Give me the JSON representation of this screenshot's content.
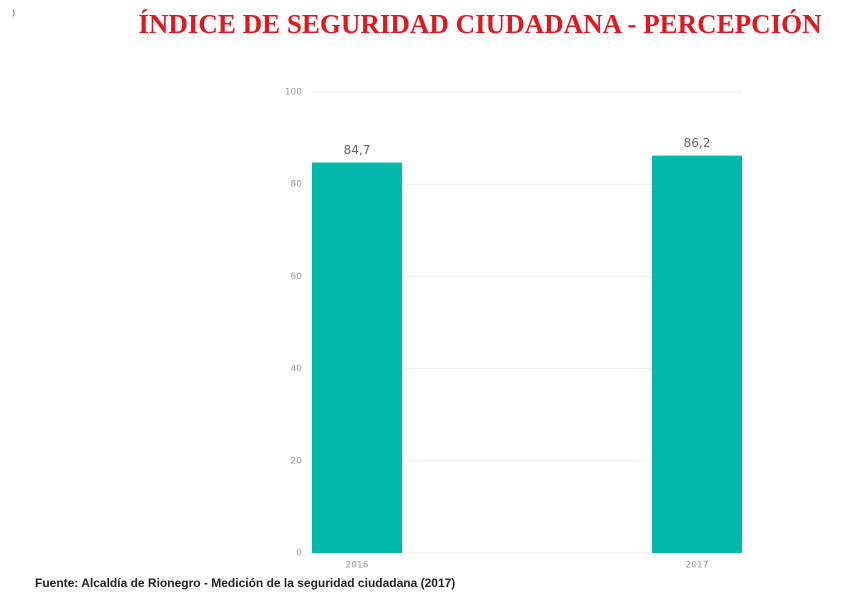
{
  "corner_mark": ")",
  "chart_data": {
    "type": "bar",
    "title": "ÍNDICE DE SEGURIDAD CIUDADANA - PERCEPCIÓN",
    "categories": [
      "2016",
      "2017"
    ],
    "values": [
      84.7,
      86.2
    ],
    "value_labels": [
      "84,7",
      "86,2"
    ],
    "color": "#01b8aa",
    "ylim": [
      0,
      100
    ],
    "yticks": [
      0,
      20,
      40,
      60,
      80,
      100
    ],
    "grid": true,
    "source": "Fuente: Alcaldía de Rionegro - Medición de la seguridad ciudadana (2017)"
  }
}
